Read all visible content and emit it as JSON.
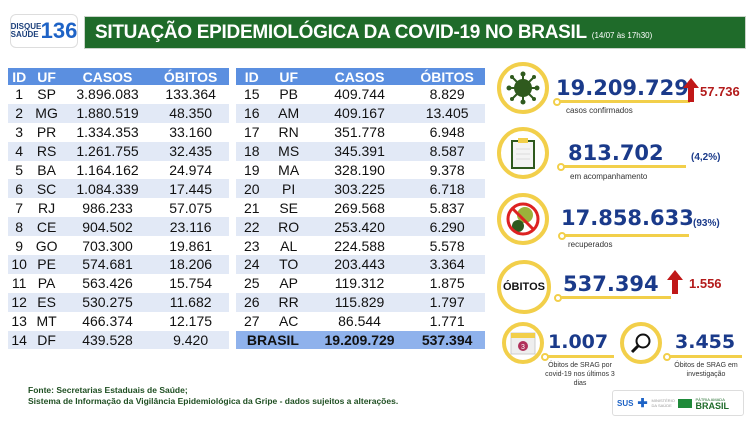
{
  "header": {
    "logo_line1": "DISQUE",
    "logo_line2": "SAÚDE",
    "logo_number": "136",
    "title": "SITUAÇÃO EPIDEMIOLÓGICA DA COVID-19 NO BRASIL",
    "date": "(14/07 às 17h30)"
  },
  "table": {
    "columns": [
      "ID",
      "UF",
      "CASOS",
      "ÓBITOS"
    ],
    "left_rows": [
      [
        "1",
        "SP",
        "3.896.083",
        "133.364"
      ],
      [
        "2",
        "MG",
        "1.880.519",
        "48.350"
      ],
      [
        "3",
        "PR",
        "1.334.353",
        "33.160"
      ],
      [
        "4",
        "RS",
        "1.261.755",
        "32.435"
      ],
      [
        "5",
        "BA",
        "1.164.162",
        "24.974"
      ],
      [
        "6",
        "SC",
        "1.084.339",
        "17.445"
      ],
      [
        "7",
        "RJ",
        "986.233",
        "57.075"
      ],
      [
        "8",
        "CE",
        "904.502",
        "23.116"
      ],
      [
        "9",
        "GO",
        "703.300",
        "19.861"
      ],
      [
        "10",
        "PE",
        "574.681",
        "18.206"
      ],
      [
        "11",
        "PA",
        "563.426",
        "15.754"
      ],
      [
        "12",
        "ES",
        "530.275",
        "11.682"
      ],
      [
        "13",
        "MT",
        "466.374",
        "12.175"
      ],
      [
        "14",
        "DF",
        "439.528",
        "9.420"
      ]
    ],
    "right_rows": [
      [
        "15",
        "PB",
        "409.744",
        "8.829"
      ],
      [
        "16",
        "AM",
        "409.167",
        "13.405"
      ],
      [
        "17",
        "RN",
        "351.778",
        "6.948"
      ],
      [
        "18",
        "MS",
        "345.391",
        "8.587"
      ],
      [
        "19",
        "MA",
        "328.190",
        "9.378"
      ],
      [
        "20",
        "PI",
        "303.225",
        "6.718"
      ],
      [
        "21",
        "SE",
        "269.568",
        "5.837"
      ],
      [
        "22",
        "RO",
        "253.420",
        "6.290"
      ],
      [
        "23",
        "AL",
        "224.588",
        "5.578"
      ],
      [
        "24",
        "TO",
        "203.443",
        "3.364"
      ],
      [
        "25",
        "AP",
        "119.312",
        "1.875"
      ],
      [
        "26",
        "RR",
        "115.829",
        "1.797"
      ],
      [
        "27",
        "AC",
        "86.544",
        "1.771"
      ]
    ],
    "total": {
      "label": "BRASIL",
      "casos": "19.209.729",
      "obitos": "537.394"
    }
  },
  "stats": {
    "confirmed": {
      "value": "19.209.729",
      "label": "casos confirmados",
      "increase": "57.736",
      "icon": "virus-icon"
    },
    "monitoring": {
      "value": "813.702",
      "label": "em acompanhamento",
      "percent": "(4,2%)",
      "icon": "clipboard-icon"
    },
    "recovered": {
      "value": "17.858.633",
      "label": "recuperados",
      "percent": "(93%)",
      "icon": "no-virus-icon"
    },
    "deaths": {
      "badge": "ÓBITOS",
      "value": "537.394",
      "increase": "1.556"
    },
    "srag_recent": {
      "value": "1.007",
      "label": "Óbitos de SRAG por covid-19 nos últimos 3 dias",
      "calendar_day": "3",
      "icon": "calendar-icon"
    },
    "srag_investigation": {
      "value": "3.455",
      "label": "Óbitos de SRAG em investigação",
      "icon": "magnifier-icon"
    }
  },
  "footer": {
    "line1": "Fonte: Secretarias Estaduais de Saúde;",
    "line2": "Sistema de Informação da Vigilância Epidemiológica da Gripe - dados sujeitos a alterações."
  },
  "logos": {
    "sus": "SUS",
    "ministry": "MINISTÉRIO DA SAÚDE",
    "brasil": "BRASIL",
    "patria": "PÁTRIA AMADA"
  },
  "colors": {
    "green": "#1f6b2a",
    "blue_header": "#5b8fe0",
    "number_blue": "#1a3a8a",
    "yellow": "#f2cf4a",
    "red": "#c01818"
  }
}
